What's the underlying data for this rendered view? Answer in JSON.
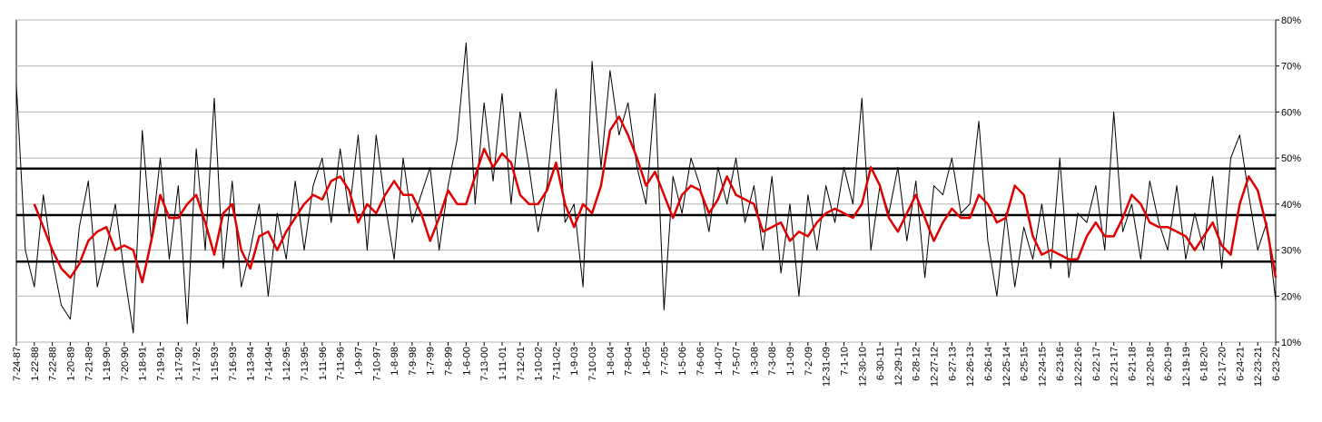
{
  "chart_data": {
    "type": "line",
    "categories": [
      "7-24-87",
      null,
      "1-22-88",
      null,
      "7-22-88",
      null,
      "1-20-89",
      null,
      "7-21-89",
      null,
      "1-19-90",
      null,
      "7-20-90",
      null,
      "1-18-91",
      null,
      "7-19-91",
      null,
      "1-17-92",
      null,
      "7-17-92",
      null,
      "1-15-93",
      null,
      "7-16-93",
      null,
      "1-13-94",
      null,
      "7-14-94",
      null,
      "1-12-95",
      null,
      "7-13-95",
      null,
      "1-11-96",
      null,
      "7-11-96",
      null,
      "1-9-97",
      null,
      "7-10-97",
      null,
      "1-8-98",
      null,
      "7-9-98",
      null,
      "1-7-99",
      null,
      "7-8-99",
      null,
      "1-6-00",
      null,
      "7-13-00",
      null,
      "1-11-01",
      null,
      "7-12-01",
      null,
      "1-10-02",
      null,
      "7-11-02",
      null,
      "1-9-03",
      null,
      "7-10-03",
      null,
      "1-8-04",
      null,
      "7-8-04",
      null,
      "1-6-05",
      null,
      "7-7-05",
      null,
      "1-5-06",
      null,
      "7-6-06",
      null,
      "1-4-07",
      null,
      "7-5-07",
      null,
      "1-3-08",
      null,
      "7-3-08",
      null,
      "1-1-09",
      null,
      "7-2-09",
      null,
      "12-31-09",
      null,
      "7-1-10",
      null,
      "12-30-10",
      null,
      "6-30-11",
      null,
      "12-29-11",
      null,
      "6-28-12",
      null,
      "12-27-12",
      null,
      "6-27-13",
      null,
      "12-26-13",
      null,
      "6-26-14",
      null,
      "12-25-14",
      null,
      "6-25-15",
      null,
      "12-24-15",
      null,
      "6-23-16",
      null,
      "12-22-16",
      null,
      "6-22-17",
      null,
      "12-21-17",
      null,
      "6-21-18",
      null,
      "12-20-18",
      null,
      "6-20-19",
      null,
      "12-19-19",
      null,
      "6-18-20",
      null,
      "12-17-20",
      null,
      "6-24-21",
      null,
      "12-23-21",
      null,
      "6-23-22"
    ],
    "series": [
      {
        "color": "#000000",
        "width": 1,
        "values": [
          66,
          30,
          22,
          42,
          28,
          18,
          15,
          35,
          45,
          22,
          30,
          40,
          25,
          12,
          56,
          32,
          50,
          28,
          44,
          14,
          52,
          30,
          63,
          26,
          45,
          22,
          30,
          40,
          20,
          38,
          28,
          45,
          30,
          44,
          50,
          36,
          52,
          38,
          55,
          30,
          55,
          40,
          28,
          50,
          36,
          42,
          48,
          30,
          44,
          54,
          75,
          40,
          62,
          45,
          64,
          40,
          60,
          48,
          34,
          44,
          65,
          36,
          40,
          22,
          71,
          48,
          69,
          55,
          62,
          48,
          40,
          64,
          17,
          46,
          38,
          50,
          44,
          34,
          48,
          40,
          50,
          36,
          44,
          30,
          46,
          25,
          40,
          20,
          42,
          30,
          44,
          36,
          48,
          40,
          63,
          30,
          44,
          38,
          48,
          32,
          45,
          24,
          44,
          42,
          50,
          38,
          40,
          58,
          32,
          20,
          38,
          22,
          35,
          28,
          40,
          26,
          50,
          24,
          38,
          36,
          44,
          30,
          60,
          34,
          40,
          28,
          45,
          36,
          30,
          44,
          28,
          38,
          30,
          46,
          26,
          50,
          55,
          42,
          30,
          36,
          19
        ]
      },
      {
        "color": "#e00000",
        "width": 2.5,
        "values": [
          null,
          null,
          40,
          35,
          30,
          26,
          24,
          27,
          32,
          34,
          35,
          30,
          31,
          30,
          23,
          32,
          42,
          37,
          37,
          40,
          42,
          36,
          29,
          38,
          40,
          30,
          26,
          33,
          34,
          30,
          34,
          37,
          40,
          42,
          41,
          45,
          46,
          43,
          36,
          40,
          38,
          42,
          45,
          42,
          42,
          38,
          32,
          37,
          43,
          40,
          40,
          46,
          52,
          48,
          51,
          49,
          42,
          40,
          40,
          43,
          49,
          40,
          35,
          40,
          38,
          44,
          56,
          59,
          55,
          50,
          44,
          47,
          42,
          37,
          42,
          44,
          43,
          38,
          41,
          46,
          42,
          41,
          40,
          34,
          35,
          36,
          32,
          34,
          33,
          36,
          38,
          39,
          38,
          37,
          40,
          48,
          44,
          37,
          34,
          38,
          42,
          37,
          32,
          36,
          39,
          37,
          37,
          42,
          40,
          36,
          37,
          44,
          42,
          33,
          29,
          30,
          29,
          28,
          28,
          33,
          36,
          33,
          33,
          37,
          42,
          40,
          36,
          35,
          35,
          34,
          33,
          30,
          33,
          36,
          31,
          29,
          40,
          46,
          43,
          35,
          24
        ]
      }
    ],
    "hlines": [
      47.7,
      37.6,
      27.5
    ],
    "hline_color": "#000000",
    "ylim": [
      10,
      80
    ],
    "yticks": [
      {
        "value": 10,
        "label": "10%"
      },
      {
        "value": 20,
        "label": "20%"
      },
      {
        "value": 30,
        "label": "30%"
      },
      {
        "value": 40,
        "label": "40%"
      },
      {
        "value": 50,
        "label": "50%"
      },
      {
        "value": 60,
        "label": "60%"
      },
      {
        "value": 70,
        "label": "70%"
      },
      {
        "value": 80,
        "label": "80%"
      }
    ],
    "grid": true
  }
}
